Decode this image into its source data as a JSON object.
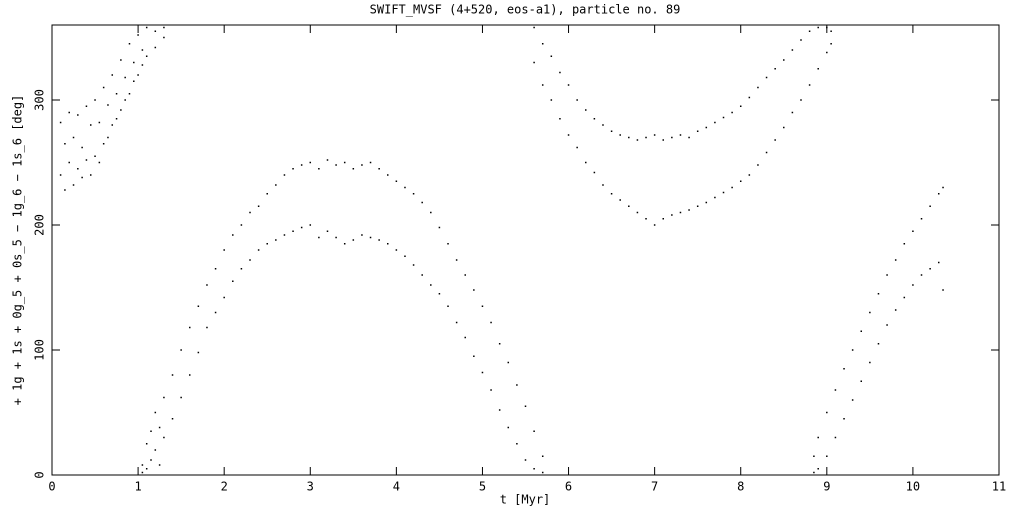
{
  "chart_data": {
    "type": "scatter",
    "title": "SWIFT_MVSF (4+520, eos-a1), particle no. 89",
    "x_label": "t [Myr]",
    "y_label": "+ 1g + 1s + 0g_5 + 0s_5 − 1g_6 − 1s_6 [deg]",
    "color": "#000000",
    "xlim": [
      0,
      11
    ],
    "xticks": [
      0,
      1,
      2,
      3,
      4,
      5,
      6,
      7,
      8,
      9,
      10,
      11
    ],
    "ylim": [
      0,
      360
    ],
    "yticks": [
      0,
      100,
      200,
      300
    ],
    "x": [
      0.1,
      0.1,
      0.15,
      0.15,
      0.2,
      0.2,
      0.25,
      0.25,
      0.3,
      0.3,
      0.35,
      0.35,
      0.4,
      0.4,
      0.45,
      0.45,
      0.5,
      0.5,
      0.55,
      0.55,
      0.6,
      0.6,
      0.65,
      0.65,
      0.7,
      0.7,
      0.75,
      0.75,
      0.8,
      0.8,
      0.85,
      0.85,
      0.9,
      0.9,
      0.95,
      0.95,
      1.0,
      1.0,
      1.05,
      1.05,
      1.1,
      1.1,
      1.2,
      1.2,
      1.3,
      1.3,
      1.05,
      1.05,
      1.1,
      1.1,
      1.15,
      1.15,
      1.2,
      1.2,
      1.25,
      1.25,
      1.3,
      1.3,
      1.4,
      1.4,
      1.5,
      1.5,
      1.6,
      1.6,
      1.7,
      1.7,
      1.8,
      1.8,
      1.9,
      1.9,
      2.0,
      2.0,
      2.1,
      2.1,
      2.2,
      2.2,
      2.3,
      2.3,
      2.4,
      2.4,
      2.5,
      2.5,
      2.6,
      2.6,
      2.7,
      2.7,
      2.8,
      2.8,
      2.9,
      2.9,
      3.0,
      3.0,
      3.1,
      3.1,
      3.2,
      3.2,
      3.3,
      3.3,
      3.4,
      3.4,
      3.5,
      3.5,
      3.6,
      3.6,
      3.7,
      3.7,
      3.8,
      3.8,
      3.9,
      3.9,
      4.0,
      4.0,
      4.1,
      4.1,
      4.2,
      4.2,
      4.3,
      4.3,
      4.4,
      4.4,
      4.5,
      4.5,
      4.6,
      4.6,
      4.7,
      4.7,
      4.8,
      4.8,
      4.9,
      4.9,
      5.0,
      5.0,
      5.1,
      5.1,
      5.2,
      5.2,
      5.3,
      5.3,
      5.4,
      5.4,
      5.5,
      5.5,
      5.6,
      5.6,
      5.7,
      5.7,
      5.6,
      5.6,
      5.7,
      5.7,
      5.8,
      5.8,
      5.9,
      5.9,
      6.0,
      6.0,
      6.1,
      6.1,
      6.2,
      6.2,
      6.3,
      6.3,
      6.4,
      6.4,
      6.5,
      6.5,
      6.6,
      6.6,
      6.7,
      6.7,
      6.8,
      6.8,
      6.9,
      6.9,
      7.0,
      7.0,
      7.1,
      7.1,
      7.2,
      7.2,
      7.3,
      7.3,
      7.4,
      7.4,
      7.5,
      7.5,
      7.6,
      7.6,
      7.7,
      7.7,
      7.8,
      7.8,
      7.9,
      7.9,
      8.0,
      8.0,
      8.1,
      8.1,
      8.2,
      8.2,
      8.3,
      8.3,
      8.4,
      8.4,
      8.5,
      8.5,
      8.6,
      8.6,
      8.7,
      8.7,
      8.8,
      8.8,
      8.9,
      8.9,
      9.0,
      9.0,
      9.05,
      9.05,
      8.85,
      8.85,
      8.9,
      8.9,
      9.0,
      9.0,
      9.1,
      9.1,
      9.2,
      9.2,
      9.3,
      9.3,
      9.4,
      9.4,
      9.5,
      9.5,
      9.6,
      9.6,
      9.7,
      9.7,
      9.8,
      9.8,
      9.9,
      9.9,
      10.0,
      10.0,
      10.1,
      10.1,
      10.2,
      10.2,
      10.3,
      10.3,
      10.35,
      10.35
    ],
    "values": [
      282,
      240,
      265,
      228,
      290,
      250,
      270,
      232,
      288,
      245,
      262,
      238,
      295,
      252,
      280,
      240,
      300,
      255,
      282,
      250,
      310,
      265,
      296,
      270,
      320,
      280,
      305,
      285,
      332,
      292,
      318,
      300,
      345,
      305,
      330,
      315,
      352,
      320,
      340,
      328,
      358,
      335,
      355,
      342,
      358,
      350,
      8,
      2,
      25,
      5,
      35,
      12,
      50,
      20,
      38,
      8,
      62,
      30,
      80,
      45,
      100,
      62,
      118,
      80,
      135,
      98,
      152,
      118,
      165,
      130,
      180,
      142,
      192,
      155,
      200,
      165,
      210,
      172,
      215,
      180,
      225,
      185,
      232,
      188,
      240,
      192,
      245,
      195,
      248,
      198,
      250,
      200,
      245,
      190,
      252,
      195,
      248,
      190,
      250,
      185,
      245,
      188,
      248,
      192,
      250,
      190,
      245,
      188,
      240,
      185,
      235,
      180,
      230,
      175,
      225,
      168,
      218,
      160,
      210,
      152,
      198,
      145,
      185,
      135,
      172,
      122,
      160,
      110,
      148,
      95,
      135,
      82,
      122,
      68,
      105,
      52,
      90,
      38,
      72,
      25,
      55,
      12,
      35,
      5,
      15,
      2,
      358,
      330,
      345,
      312,
      335,
      300,
      322,
      285,
      312,
      272,
      300,
      262,
      292,
      250,
      285,
      242,
      280,
      232,
      275,
      225,
      272,
      220,
      270,
      215,
      268,
      210,
      270,
      205,
      272,
      200,
      268,
      205,
      270,
      208,
      272,
      210,
      270,
      212,
      275,
      215,
      278,
      218,
      282,
      222,
      286,
      226,
      290,
      230,
      295,
      235,
      302,
      240,
      310,
      248,
      318,
      258,
      325,
      268,
      332,
      278,
      340,
      290,
      348,
      300,
      355,
      312,
      358,
      325,
      358,
      338,
      355,
      345,
      15,
      2,
      30,
      5,
      50,
      15,
      68,
      30,
      85,
      45,
      100,
      60,
      115,
      75,
      130,
      90,
      145,
      105,
      160,
      120,
      172,
      132,
      185,
      142,
      195,
      152,
      205,
      160,
      215,
      165,
      225,
      170,
      230,
      148
    ]
  }
}
